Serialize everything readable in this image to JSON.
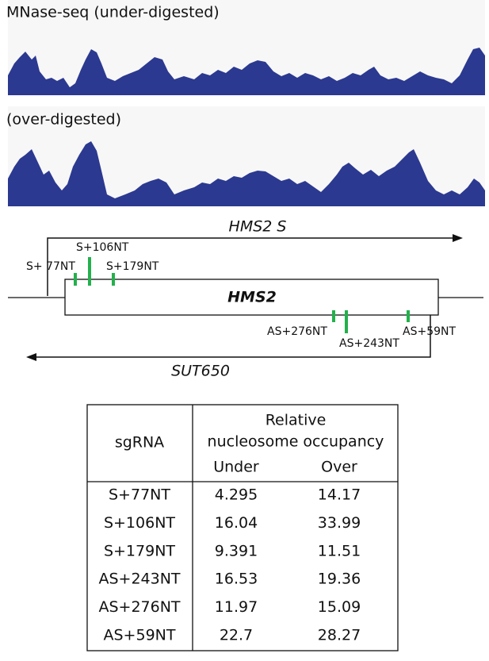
{
  "tracks": [
    {
      "label": "MNase-seq (under-digested)"
    },
    {
      "label": "(over-digested)"
    }
  ],
  "genes": {
    "sense": "HMS2 S",
    "gene": "HMS2",
    "antisense": "SUT650"
  },
  "sgrnas": {
    "sense": [
      "S+ 77NT",
      "S+106NT",
      "S+179NT"
    ],
    "antisense": [
      "AS+276NT",
      "AS+243NT",
      "AS+59NT"
    ]
  },
  "table": {
    "header": {
      "sgrna": "sgRNA",
      "group": [
        "Relative",
        "nucleosome occupancy"
      ],
      "columns": [
        "Under",
        "Over"
      ]
    },
    "rows": [
      [
        "S+77NT",
        "4.295",
        "14.17"
      ],
      [
        "S+106NT",
        "16.04",
        "33.99"
      ],
      [
        "S+179NT",
        "9.391",
        "11.51"
      ],
      [
        "AS+243NT",
        "16.53",
        "19.36"
      ],
      [
        "AS+276NT",
        "11.97",
        "15.09"
      ],
      [
        "AS+59NT",
        "22.7",
        "28.27"
      ]
    ]
  }
}
